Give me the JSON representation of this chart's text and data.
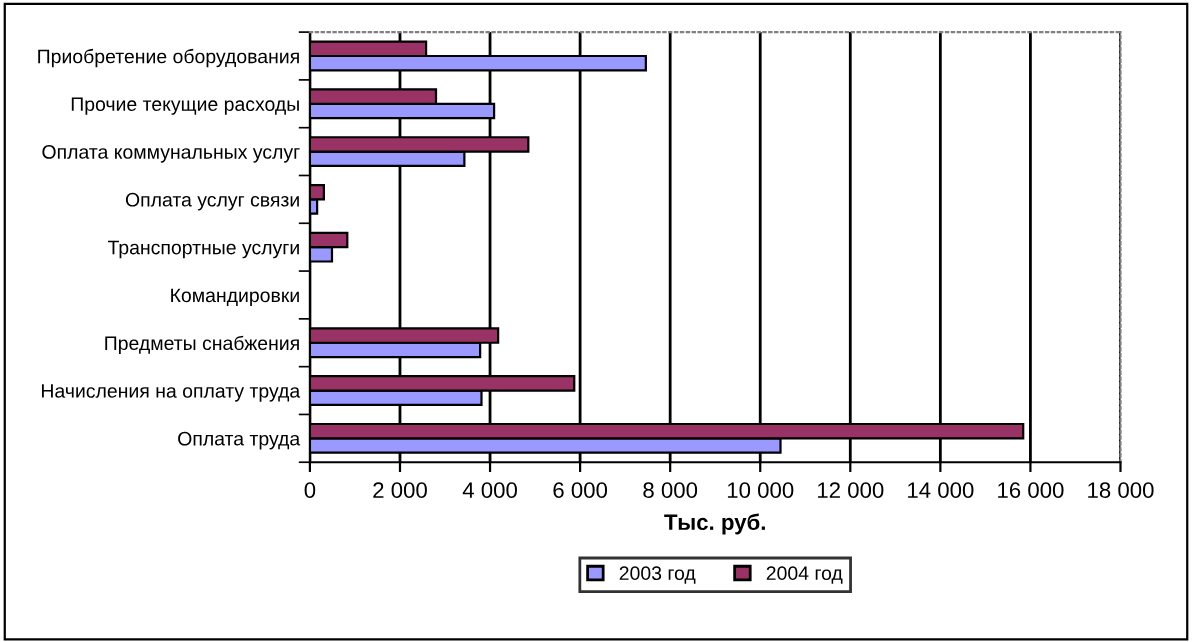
{
  "chart_data": {
    "type": "bar",
    "orientation": "horizontal",
    "xlabel": "Тыс. руб.",
    "categories": [
      "Приобретение оборудования",
      "Прочие текущие расходы",
      "Оплата коммунальных услуг",
      "Оплата услуг связи",
      "Транспортные услуги",
      "Командировки",
      "Предметы снабжения",
      "Начисления на оплату труда",
      "Оплата труда"
    ],
    "series": [
      {
        "name": "2003 год",
        "color": "#9999ff",
        "values": [
          7460,
          4090,
          3430,
          160,
          490,
          0,
          3780,
          3810,
          10450
        ]
      },
      {
        "name": "2004 год",
        "color": "#993366",
        "values": [
          2580,
          2800,
          4850,
          310,
          830,
          0,
          4180,
          5870,
          15840
        ]
      }
    ],
    "xlim": [
      0,
      18000
    ],
    "xticks": [
      {
        "value": 0,
        "label": "0"
      },
      {
        "value": 2000,
        "label": "2 000"
      },
      {
        "value": 4000,
        "label": "4 000"
      },
      {
        "value": 6000,
        "label": "6 000"
      },
      {
        "value": 8000,
        "label": "8 000"
      },
      {
        "value": 10000,
        "label": "10 000"
      },
      {
        "value": 12000,
        "label": "12 000"
      },
      {
        "value": 14000,
        "label": "14 000"
      },
      {
        "value": 16000,
        "label": "16 000"
      },
      {
        "value": 18000,
        "label": "18 000"
      }
    ],
    "grid": "x",
    "legend": "bottom"
  }
}
